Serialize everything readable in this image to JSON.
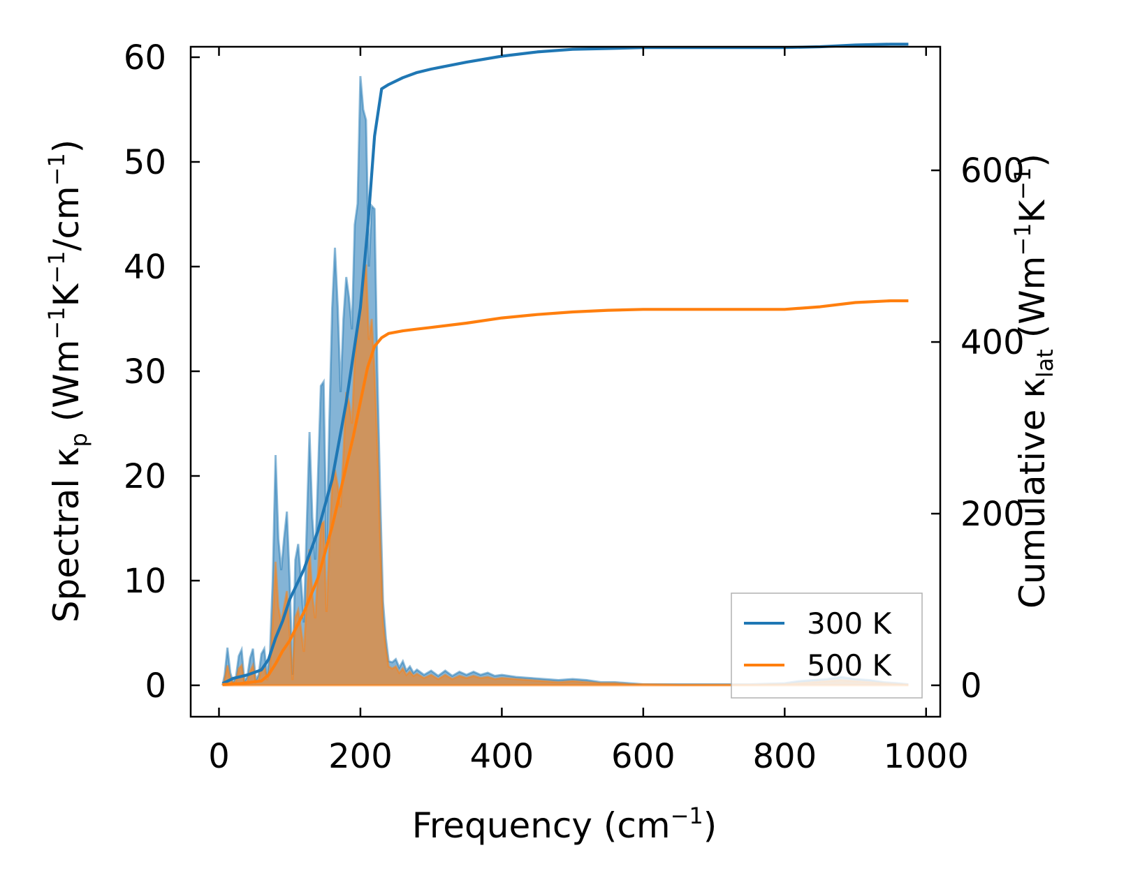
{
  "chart_data": {
    "type": "line",
    "xlabel": {
      "base": "Frequency (cm",
      "sup": "−1",
      "end": ")"
    },
    "ylabel_left": {
      "text": "Spectral κ",
      "sub": "p",
      "rest": " (Wm",
      "sup1": "−1",
      "mid": "K",
      "sup2": "−1",
      "mid2": "/cm",
      "sup3": "−1",
      "end": ")"
    },
    "ylabel_right": {
      "text": "Cumulative κ",
      "sub": "lat",
      "rest": " (Wm",
      "sup1": "−1",
      "mid": "K",
      "sup2": "−1",
      "end": ")"
    },
    "xlim": [
      -40,
      1020
    ],
    "ylim_left": [
      -3,
      61
    ],
    "ylim_right": [
      -36.6,
      744
    ],
    "x_ticks": [
      0,
      200,
      400,
      600,
      800,
      1000
    ],
    "y_left_ticks": [
      0,
      10,
      20,
      30,
      40,
      50,
      60
    ],
    "y_right_ticks": [
      0,
      200,
      400,
      600
    ],
    "legend_position": "lower-right",
    "colors": {
      "300K": "#1f77b4",
      "500K": "#ff7f0e"
    },
    "series": [
      {
        "name": "300 K",
        "spectral": [
          [
            5,
            0
          ],
          [
            8,
            1
          ],
          [
            12,
            3.6
          ],
          [
            16,
            1.2
          ],
          [
            20,
            0.3
          ],
          [
            24,
            0.8
          ],
          [
            28,
            2.8
          ],
          [
            32,
            3.4
          ],
          [
            36,
            0.4
          ],
          [
            40,
            0.8
          ],
          [
            44,
            2.6
          ],
          [
            48,
            3.5
          ],
          [
            52,
            0.5
          ],
          [
            56,
            1
          ],
          [
            60,
            3
          ],
          [
            64,
            3.5
          ],
          [
            68,
            1
          ],
          [
            72,
            3
          ],
          [
            76,
            10
          ],
          [
            80,
            22
          ],
          [
            84,
            14
          ],
          [
            88,
            11
          ],
          [
            92,
            14
          ],
          [
            96,
            16.6
          ],
          [
            100,
            10
          ],
          [
            104,
            1
          ],
          [
            108,
            12
          ],
          [
            112,
            13.5
          ],
          [
            116,
            10
          ],
          [
            120,
            6
          ],
          [
            124,
            15
          ],
          [
            128,
            24.2
          ],
          [
            132,
            16
          ],
          [
            136,
            12
          ],
          [
            140,
            20
          ],
          [
            144,
            28.6
          ],
          [
            148,
            29
          ],
          [
            152,
            13
          ],
          [
            156,
            25
          ],
          [
            160,
            36
          ],
          [
            164,
            41.8
          ],
          [
            168,
            36
          ],
          [
            172,
            28
          ],
          [
            176,
            35
          ],
          [
            180,
            39
          ],
          [
            184,
            37
          ],
          [
            188,
            34
          ],
          [
            192,
            44
          ],
          [
            196,
            46
          ],
          [
            200,
            58.2
          ],
          [
            204,
            55
          ],
          [
            208,
            54
          ],
          [
            212,
            40
          ],
          [
            216,
            45.8
          ],
          [
            220,
            45.5
          ],
          [
            224,
            30
          ],
          [
            228,
            18
          ],
          [
            232,
            8
          ],
          [
            236,
            4.5
          ],
          [
            240,
            2.3
          ],
          [
            245,
            2.2
          ],
          [
            250,
            2.5
          ],
          [
            255,
            1.7
          ],
          [
            260,
            2.3
          ],
          [
            265,
            1.4
          ],
          [
            270,
            1.8
          ],
          [
            275,
            1.2
          ],
          [
            280,
            1.5
          ],
          [
            290,
            1
          ],
          [
            300,
            1.4
          ],
          [
            310,
            0.9
          ],
          [
            320,
            1.4
          ],
          [
            330,
            0.9
          ],
          [
            340,
            1.3
          ],
          [
            350,
            1
          ],
          [
            360,
            1.3
          ],
          [
            370,
            1
          ],
          [
            380,
            1.2
          ],
          [
            390,
            0.9
          ],
          [
            400,
            1
          ],
          [
            420,
            0.8
          ],
          [
            440,
            0.7
          ],
          [
            460,
            0.6
          ],
          [
            480,
            0.5
          ],
          [
            500,
            0.6
          ],
          [
            520,
            0.5
          ],
          [
            540,
            0.3
          ],
          [
            560,
            0.3
          ],
          [
            580,
            0.2
          ],
          [
            600,
            0.1
          ],
          [
            650,
            0.1
          ],
          [
            700,
            0.1
          ],
          [
            750,
            0.1
          ],
          [
            800,
            0.2
          ],
          [
            820,
            0.4
          ],
          [
            840,
            0.5
          ],
          [
            860,
            0.6
          ],
          [
            880,
            0.8
          ],
          [
            900,
            0.6
          ],
          [
            920,
            0.5
          ],
          [
            940,
            0.3
          ],
          [
            960,
            0.2
          ],
          [
            975,
            0.1
          ]
        ],
        "cumulative": [
          [
            5,
            2
          ],
          [
            20,
            8
          ],
          [
            40,
            12
          ],
          [
            60,
            18
          ],
          [
            70,
            30
          ],
          [
            80,
            55
          ],
          [
            90,
            75
          ],
          [
            100,
            100
          ],
          [
            120,
            135
          ],
          [
            140,
            180
          ],
          [
            160,
            240
          ],
          [
            180,
            330
          ],
          [
            200,
            440
          ],
          [
            210,
            530
          ],
          [
            220,
            640
          ],
          [
            230,
            695
          ],
          [
            240,
            700
          ],
          [
            260,
            708
          ],
          [
            280,
            714
          ],
          [
            300,
            718
          ],
          [
            350,
            726
          ],
          [
            400,
            733
          ],
          [
            450,
            738
          ],
          [
            500,
            741
          ],
          [
            550,
            742
          ],
          [
            600,
            743
          ],
          [
            700,
            743
          ],
          [
            800,
            743
          ],
          [
            850,
            744
          ],
          [
            900,
            746
          ],
          [
            950,
            747
          ],
          [
            975,
            747
          ]
        ]
      },
      {
        "name": "500 K",
        "spectral": [
          [
            5,
            0
          ],
          [
            8,
            0.5
          ],
          [
            12,
            1.9
          ],
          [
            16,
            0.6
          ],
          [
            20,
            0.2
          ],
          [
            24,
            0.4
          ],
          [
            28,
            1.6
          ],
          [
            32,
            1.9
          ],
          [
            36,
            0.2
          ],
          [
            40,
            0.4
          ],
          [
            44,
            1.3
          ],
          [
            48,
            1.9
          ],
          [
            52,
            0.3
          ],
          [
            56,
            0.5
          ],
          [
            60,
            1.6
          ],
          [
            64,
            1.9
          ],
          [
            68,
            0.5
          ],
          [
            72,
            1.6
          ],
          [
            76,
            6
          ],
          [
            80,
            11.8
          ],
          [
            84,
            7.5
          ],
          [
            88,
            6
          ],
          [
            92,
            7.5
          ],
          [
            96,
            9
          ],
          [
            100,
            5
          ],
          [
            104,
            0.5
          ],
          [
            108,
            6.5
          ],
          [
            112,
            7.2
          ],
          [
            116,
            5.4
          ],
          [
            120,
            3.2
          ],
          [
            124,
            8
          ],
          [
            128,
            13
          ],
          [
            132,
            8.6
          ],
          [
            136,
            6.4
          ],
          [
            140,
            10.8
          ],
          [
            144,
            15.4
          ],
          [
            148,
            15.6
          ],
          [
            152,
            7
          ],
          [
            156,
            13.4
          ],
          [
            160,
            19.4
          ],
          [
            164,
            20.6
          ],
          [
            168,
            19
          ],
          [
            172,
            17
          ],
          [
            176,
            22
          ],
          [
            180,
            28
          ],
          [
            184,
            27
          ],
          [
            188,
            25
          ],
          [
            192,
            31
          ],
          [
            196,
            34
          ],
          [
            200,
            36
          ],
          [
            204,
            38
          ],
          [
            208,
            40.2
          ],
          [
            212,
            33
          ],
          [
            216,
            35
          ],
          [
            220,
            30
          ],
          [
            224,
            23
          ],
          [
            228,
            14
          ],
          [
            232,
            6
          ],
          [
            236,
            3.5
          ],
          [
            240,
            1.8
          ],
          [
            245,
            1.6
          ],
          [
            250,
            1.8
          ],
          [
            255,
            1.2
          ],
          [
            260,
            1.6
          ],
          [
            265,
            1
          ],
          [
            270,
            1.3
          ],
          [
            275,
            0.9
          ],
          [
            280,
            1.1
          ],
          [
            290,
            0.7
          ],
          [
            300,
            1
          ],
          [
            310,
            0.6
          ],
          [
            320,
            1
          ],
          [
            330,
            0.6
          ],
          [
            340,
            0.9
          ],
          [
            350,
            0.7
          ],
          [
            360,
            0.9
          ],
          [
            370,
            0.7
          ],
          [
            380,
            0.8
          ],
          [
            390,
            0.6
          ],
          [
            400,
            0.7
          ],
          [
            420,
            0.6
          ],
          [
            440,
            0.5
          ],
          [
            460,
            0.4
          ],
          [
            480,
            0.3
          ],
          [
            500,
            0.4
          ],
          [
            520,
            0.3
          ],
          [
            540,
            0.2
          ],
          [
            560,
            0.2
          ],
          [
            580,
            0.1
          ],
          [
            600,
            0.1
          ],
          [
            650,
            0.05
          ],
          [
            700,
            0.05
          ],
          [
            750,
            0.05
          ],
          [
            800,
            0.1
          ],
          [
            820,
            0.2
          ],
          [
            840,
            0.3
          ],
          [
            860,
            0.4
          ],
          [
            880,
            0.5
          ],
          [
            900,
            0.4
          ],
          [
            920,
            0.3
          ],
          [
            940,
            0.2
          ],
          [
            960,
            0.1
          ],
          [
            975,
            0.05
          ]
        ],
        "cumulative": [
          [
            5,
            1
          ],
          [
            30,
            2
          ],
          [
            60,
            5
          ],
          [
            70,
            12
          ],
          [
            80,
            25
          ],
          [
            90,
            40
          ],
          [
            100,
            52
          ],
          [
            120,
            85
          ],
          [
            140,
            125
          ],
          [
            160,
            185
          ],
          [
            180,
            255
          ],
          [
            190,
            290
          ],
          [
            200,
            330
          ],
          [
            210,
            370
          ],
          [
            220,
            395
          ],
          [
            230,
            405
          ],
          [
            240,
            410
          ],
          [
            260,
            413
          ],
          [
            280,
            415
          ],
          [
            300,
            417
          ],
          [
            350,
            422
          ],
          [
            400,
            428
          ],
          [
            450,
            432
          ],
          [
            500,
            435
          ],
          [
            550,
            437
          ],
          [
            600,
            438
          ],
          [
            700,
            438
          ],
          [
            800,
            438
          ],
          [
            850,
            441
          ],
          [
            900,
            446
          ],
          [
            950,
            448
          ],
          [
            975,
            448
          ]
        ]
      }
    ]
  }
}
